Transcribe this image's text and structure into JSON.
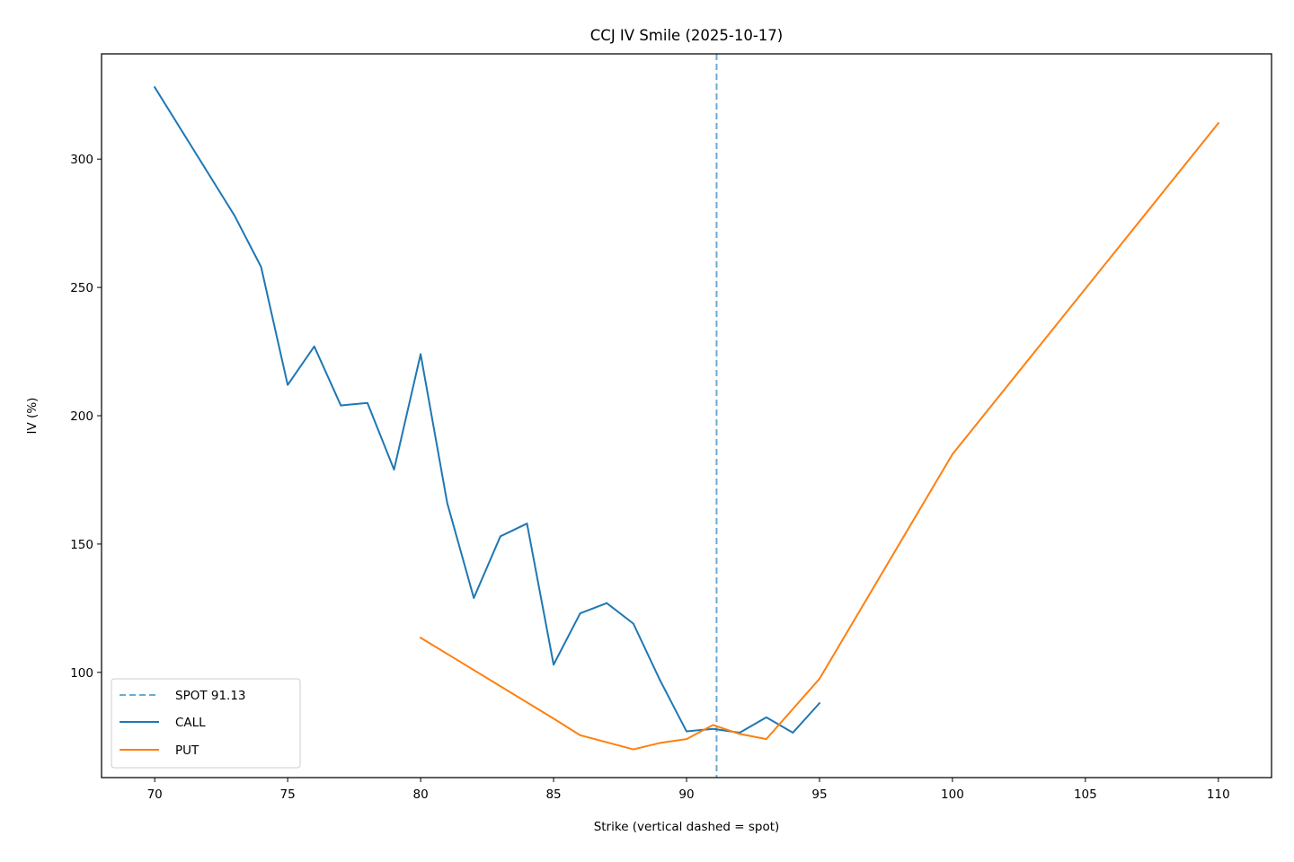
{
  "chart_data": {
    "type": "line",
    "title": "CCJ IV Smile (2025-10-17)",
    "xlabel": "Strike (vertical dashed = spot)",
    "ylabel": "IV (%)",
    "xlim": [
      68,
      112
    ],
    "ylim": [
      59,
      341
    ],
    "x_ticks": [
      70,
      75,
      80,
      85,
      90,
      95,
      100,
      105,
      110
    ],
    "y_ticks": [
      100,
      150,
      200,
      250,
      300
    ],
    "grid": false,
    "legend_position": "lower-left",
    "spot": {
      "label": "SPOT 91.13",
      "value": 91.13,
      "color": "#6aaad5",
      "style": "dashed"
    },
    "series": [
      {
        "name": "CALL",
        "color": "#1f77b4",
        "x": [
          70,
          73,
          74,
          75,
          76,
          77,
          78,
          79,
          80,
          81,
          82,
          83,
          84,
          85,
          86,
          87,
          88,
          89,
          90,
          91,
          92,
          93,
          94,
          95
        ],
        "y": [
          328,
          278,
          258,
          212,
          227,
          204,
          205,
          179,
          224,
          166,
          129,
          153,
          158,
          103,
          123,
          127,
          119,
          97,
          77,
          78,
          76.5,
          82.5,
          76.5,
          88
        ]
      },
      {
        "name": "PUT",
        "color": "#ff7f0e",
        "x": [
          80,
          85,
          86,
          88,
          89,
          90,
          91,
          92,
          93,
          95,
          100,
          110
        ],
        "y": [
          113.5,
          82,
          75.5,
          70,
          72.5,
          74,
          79.5,
          76,
          74,
          97.5,
          185,
          314
        ]
      }
    ]
  }
}
